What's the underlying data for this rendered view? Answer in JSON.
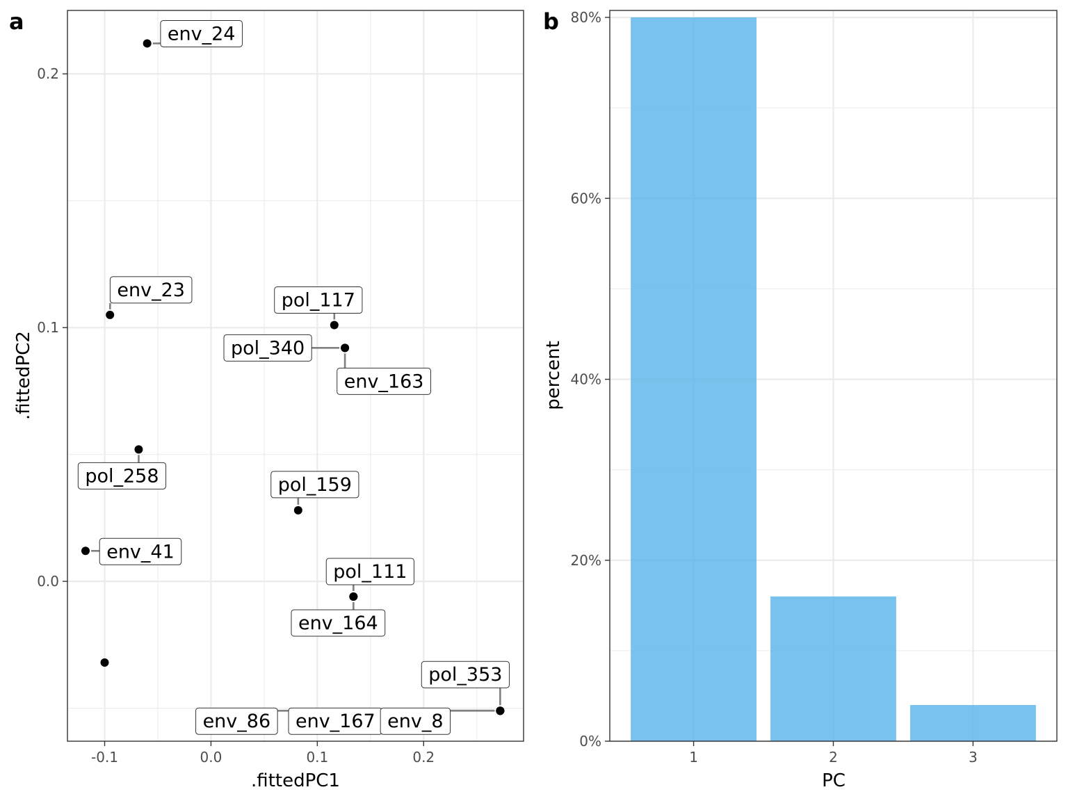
{
  "panel_a_tag": "a",
  "panel_b_tag": "b",
  "chart_data": [
    {
      "type": "scatter",
      "panel": "a",
      "xlabel": ".fittedPC1",
      "ylabel": ".fittedPC2",
      "xlim": [
        -0.135,
        0.294
      ],
      "ylim": [
        -0.063,
        0.225
      ],
      "xticks": [
        -0.1,
        0.0,
        0.1,
        0.2
      ],
      "xtick_labels": [
        "-0.1",
        "0.0",
        "0.1",
        "0.2"
      ],
      "yticks": [
        0.0,
        0.1,
        0.2
      ],
      "ytick_labels": [
        "0.0",
        "0.1",
        "0.2"
      ],
      "grid": true,
      "points": [
        {
          "label": "env_24",
          "x": -0.06,
          "y": 0.212
        },
        {
          "label": "env_23",
          "x": -0.095,
          "y": 0.105
        },
        {
          "label": "pol_117",
          "x": 0.116,
          "y": 0.101
        },
        {
          "label": "pol_340",
          "x": 0.126,
          "y": 0.092
        },
        {
          "label": "env_163",
          "x": 0.126,
          "y": 0.092
        },
        {
          "label": "pol_258",
          "x": -0.068,
          "y": 0.052
        },
        {
          "label": "pol_159",
          "x": 0.082,
          "y": 0.028
        },
        {
          "label": "env_41",
          "x": -0.118,
          "y": 0.012
        },
        {
          "label": "pol_111",
          "x": 0.134,
          "y": -0.006
        },
        {
          "label": "env_164",
          "x": 0.134,
          "y": -0.006
        },
        {
          "label": "",
          "x": -0.1,
          "y": -0.032
        },
        {
          "label": "pol_353",
          "x": 0.272,
          "y": -0.051
        },
        {
          "label": "env_86",
          "x": 0.272,
          "y": -0.051
        },
        {
          "label": "env_167",
          "x": 0.272,
          "y": -0.051
        },
        {
          "label": "env_8",
          "x": 0.272,
          "y": -0.051
        }
      ]
    },
    {
      "type": "bar",
      "panel": "b",
      "xlabel": "PC",
      "ylabel": "percent",
      "categories": [
        "1",
        "2",
        "3"
      ],
      "values": [
        80,
        16,
        4
      ],
      "ylim": [
        0,
        80
      ],
      "yticks": [
        0,
        20,
        40,
        60,
        80
      ],
      "ytick_labels": [
        "0%",
        "20%",
        "40%",
        "60%",
        "80%"
      ],
      "grid": true,
      "bar_color": "#56B4E9"
    }
  ]
}
